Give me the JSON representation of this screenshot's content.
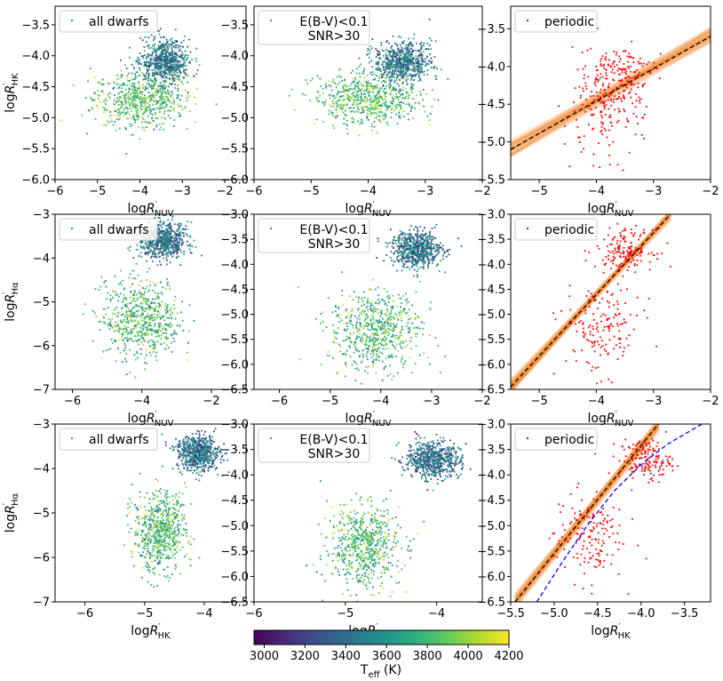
{
  "colorbar": {
    "label": "T_eff (K)",
    "label_main": "T",
    "label_sub": "eff",
    "label_unit": " (K)",
    "ticks": [
      "3000",
      "3200",
      "3400",
      "3600",
      "3800",
      "4000",
      "4200"
    ],
    "range": [
      2950,
      4200
    ],
    "colormap": "viridis"
  },
  "chart_data": [
    {
      "type": "scatter",
      "panel": "row1-col1",
      "legend": "all dwarfs",
      "legend_loc": "top-left",
      "xlabel": "logR'_NUV",
      "ylabel": "logR'_HK",
      "xlim": [
        -6,
        -1.5
      ],
      "ylim": [
        -6.0,
        -3.2
      ],
      "xticks": [
        -6,
        -5,
        -4,
        -3,
        -2
      ],
      "xtick_labels": [
        "−6",
        "−5",
        "−4",
        "−3",
        "−2"
      ],
      "yticks": [
        -6.0,
        -5.5,
        -5.0,
        -4.5,
        -4.0,
        -3.5
      ],
      "ytick_labels": [
        "−6.0",
        "−5.5",
        "−5.0",
        "−4.5",
        "−4.0",
        "−3.5"
      ],
      "color_by": "Teff",
      "clusters": [
        {
          "center": [
            -4.0,
            -4.7
          ],
          "spread": [
            0.55,
            0.22
          ],
          "teff_mean": 3820
        },
        {
          "center": [
            -3.4,
            -4.1
          ],
          "spread": [
            0.28,
            0.18
          ],
          "teff_mean": 3450
        }
      ]
    },
    {
      "type": "scatter",
      "panel": "row1-col2",
      "legend": "E(B-V)<0.1\nSNR>30",
      "legend_lines": [
        "E(B-V)<0.1",
        "SNR>30"
      ],
      "legend_loc": "top-left",
      "xlabel": "logR'_NUV",
      "xlim": [
        -6,
        -2
      ],
      "ylim": [
        -6.0,
        -3.2
      ],
      "xticks": [
        -6,
        -5,
        -4,
        -3,
        -2
      ],
      "xtick_labels": [
        "−6",
        "−5",
        "−4",
        "−3",
        "−2"
      ],
      "yticks": [
        -6.0,
        -5.5,
        -5.0,
        -4.5,
        -4.0,
        -3.5
      ],
      "ytick_labels": [
        "−6.0",
        "−5.5",
        "−5.0",
        "−4.5",
        "−4.0",
        "−3.5"
      ],
      "color_by": "Teff",
      "clusters": [
        {
          "center": [
            -4.0,
            -4.7
          ],
          "spread": [
            0.45,
            0.2
          ],
          "teff_mean": 3820
        },
        {
          "center": [
            -3.4,
            -4.1
          ],
          "spread": [
            0.25,
            0.16
          ],
          "teff_mean": 3450
        }
      ]
    },
    {
      "type": "scatter",
      "panel": "row1-col3",
      "legend": "periodic",
      "legend_loc": "top-left",
      "xlabel": "logR'_NUV",
      "xlim": [
        -5.5,
        -2
      ],
      "ylim": [
        -5.5,
        -3.2
      ],
      "xticks": [
        -5,
        -4,
        -3,
        -2
      ],
      "xtick_labels": [
        "−5",
        "−4",
        "−3",
        "−2"
      ],
      "yticks": [
        -5.5,
        -5.0,
        -4.5,
        -4.0,
        -3.5
      ],
      "ytick_labels": [
        "−5.5",
        "−5.0",
        "−4.5",
        "−4.0",
        "−3.5"
      ],
      "point_color": "#ff0000",
      "fit_line": {
        "x": [
          -5.5,
          -2.0
        ],
        "y": [
          -5.1,
          -3.6
        ],
        "color": "#000000",
        "band_color": "#f28b30"
      },
      "clusters": [
        {
          "center": [
            -3.6,
            -4.1
          ],
          "spread": [
            0.3,
            0.2
          ]
        },
        {
          "center": [
            -3.9,
            -4.6
          ],
          "spread": [
            0.35,
            0.3
          ]
        }
      ]
    },
    {
      "type": "scatter",
      "panel": "row2-col1",
      "legend": "all dwarfs",
      "legend_loc": "top-left",
      "xlabel": "logR'_NUV",
      "ylabel": "logR'_Hα",
      "xlim": [
        -6.5,
        -1.0
      ],
      "ylim": [
        -7,
        -3
      ],
      "xticks": [
        -6,
        -4,
        -2
      ],
      "xtick_labels": [
        "−6",
        "−4",
        "−2"
      ],
      "yticks": [
        -7,
        -6,
        -5,
        -4,
        -3
      ],
      "ytick_labels": [
        "−7",
        "−6",
        "−5",
        "−4",
        "−3"
      ],
      "color_by": "Teff",
      "clusters": [
        {
          "center": [
            -4.0,
            -5.4
          ],
          "spread": [
            0.55,
            0.45
          ],
          "teff_mean": 3800
        },
        {
          "center": [
            -3.4,
            -3.6
          ],
          "spread": [
            0.35,
            0.2
          ],
          "teff_mean": 3420
        }
      ]
    },
    {
      "type": "scatter",
      "panel": "row2-col2",
      "legend": "E(B-V)<0.1\nSNR>30",
      "legend_lines": [
        "E(B-V)<0.1",
        "SNR>30"
      ],
      "legend_loc": "top-left",
      "xlabel": "logR'_NUV",
      "xlim": [
        -6.5,
        -2
      ],
      "ylim": [
        -6.5,
        -3.0
      ],
      "xticks": [
        -6,
        -5,
        -4,
        -3,
        -2
      ],
      "xtick_labels": [
        "−6",
        "−5",
        "−4",
        "−3",
        "−2"
      ],
      "yticks": [
        -6.5,
        -6.0,
        -5.5,
        -5.0,
        -4.5,
        -4.0,
        -3.5,
        -3.0
      ],
      "ytick_labels": [
        "−6.5",
        "−6.0",
        "−5.5",
        "−5.0",
        "−4.5",
        "−4.0",
        "−3.5",
        "−3.0"
      ],
      "color_by": "Teff",
      "clusters": [
        {
          "center": [
            -4.1,
            -5.3
          ],
          "spread": [
            0.45,
            0.4
          ],
          "teff_mean": 3800
        },
        {
          "center": [
            -3.3,
            -3.7
          ],
          "spread": [
            0.25,
            0.18
          ],
          "teff_mean": 3420
        }
      ]
    },
    {
      "type": "scatter",
      "panel": "row2-col3",
      "legend": "periodic",
      "legend_loc": "top-left",
      "xlabel": "logR'_NUV",
      "xlim": [
        -5.5,
        -2
      ],
      "ylim": [
        -6.5,
        -3.0
      ],
      "xticks": [
        -5,
        -4,
        -3,
        -2
      ],
      "xtick_labels": [
        "−5",
        "−4",
        "−3",
        "−2"
      ],
      "yticks": [
        -6.5,
        -6.0,
        -5.5,
        -5.0,
        -4.5,
        -4.0,
        -3.5,
        -3.0
      ],
      "ytick_labels": [
        "−6.5",
        "−6.0",
        "−5.5",
        "−5.0",
        "−4.5",
        "−4.0",
        "−3.5",
        "−3.0"
      ],
      "point_color": "#ff0000",
      "fit_line": {
        "x": [
          -5.5,
          -2.7
        ],
        "y": [
          -6.45,
          -3.0
        ],
        "color": "#000000",
        "band_color": "#f28b30"
      },
      "clusters": [
        {
          "center": [
            -3.5,
            -3.7
          ],
          "spread": [
            0.25,
            0.2
          ]
        },
        {
          "center": [
            -3.9,
            -5.3
          ],
          "spread": [
            0.35,
            0.45
          ]
        }
      ]
    },
    {
      "type": "scatter",
      "panel": "row3-col1",
      "legend": "all dwarfs",
      "legend_loc": "top-left",
      "xlabel": "logR'_HK",
      "ylabel": "logR'_Hα",
      "xlim": [
        -6.5,
        -3.3
      ],
      "ylim": [
        -7,
        -3
      ],
      "xticks": [
        -6,
        -5,
        -4
      ],
      "xtick_labels": [
        "−6",
        "−5",
        "−4"
      ],
      "yticks": [
        -7,
        -6,
        -5,
        -4,
        -3
      ],
      "ytick_labels": [
        "−7",
        "−6",
        "−5",
        "−4",
        "−3"
      ],
      "color_by": "Teff",
      "clusters": [
        {
          "center": [
            -4.75,
            -5.4
          ],
          "spread": [
            0.22,
            0.45
          ],
          "teff_mean": 3800
        },
        {
          "center": [
            -4.1,
            -3.65
          ],
          "spread": [
            0.18,
            0.2
          ],
          "teff_mean": 3420
        }
      ]
    },
    {
      "type": "scatter",
      "panel": "row3-col2",
      "legend": "E(B-V)<0.1\nSNR>30",
      "legend_lines": [
        "E(B-V)<0.1",
        "SNR>30"
      ],
      "legend_loc": "top-left",
      "xlabel": "logR'_HK",
      "xlim": [
        -6,
        -3.5
      ],
      "ylim": [
        -6.5,
        -3.0
      ],
      "xticks": [
        -6,
        -5,
        -4
      ],
      "xtick_labels": [
        "−6",
        "−5",
        "−4"
      ],
      "yticks": [
        -6.5,
        -6.0,
        -5.5,
        -5.0,
        -4.5,
        -4.0,
        -3.5,
        -3.0
      ],
      "ytick_labels": [
        "−6.5",
        "−6.0",
        "−5.5",
        "−5.0",
        "−4.5",
        "−4.0",
        "−3.5",
        "−3.0"
      ],
      "color_by": "Teff",
      "clusters": [
        {
          "center": [
            -4.8,
            -5.4
          ],
          "spread": [
            0.2,
            0.4
          ],
          "teff_mean": 3800
        },
        {
          "center": [
            -4.05,
            -3.7
          ],
          "spread": [
            0.15,
            0.18
          ],
          "teff_mean": 3420
        }
      ]
    },
    {
      "type": "scatter",
      "panel": "row3-col3",
      "legend": "periodic",
      "legend_loc": "top-left",
      "xlabel": "logR'_HK",
      "xlim": [
        -5.5,
        -3.2
      ],
      "ylim": [
        -6.5,
        -3.0
      ],
      "xticks": [
        -5.5,
        -5.0,
        -4.5,
        -4.0,
        -3.5
      ],
      "xtick_labels": [
        "−5.5",
        "−5.0",
        "−4.5",
        "−4.0",
        "−3.5"
      ],
      "yticks": [
        -6.5,
        -6.0,
        -5.5,
        -5.0,
        -4.5,
        -4.0,
        -3.5,
        -3.0
      ],
      "ytick_labels": [
        "−6.5",
        "−6.0",
        "−5.5",
        "−5.0",
        "−4.5",
        "−4.0",
        "−3.5",
        "−3.0"
      ],
      "point_color": "#ff0000",
      "fit_line": {
        "x": [
          -5.45,
          -3.8
        ],
        "y": [
          -6.5,
          -3.0
        ],
        "color": "#000000",
        "band_color": "#f28b30"
      },
      "ref_curve": {
        "x": [
          -5.2,
          -4.9,
          -4.6,
          -4.3,
          -4.0,
          -3.7,
          -3.3
        ],
        "y": [
          -6.5,
          -5.7,
          -4.95,
          -4.3,
          -3.8,
          -3.4,
          -3.0
        ],
        "color": "#0000ff"
      },
      "clusters": [
        {
          "center": [
            -3.95,
            -3.7
          ],
          "spread": [
            0.15,
            0.2
          ]
        },
        {
          "center": [
            -4.6,
            -5.2
          ],
          "spread": [
            0.2,
            0.45
          ]
        }
      ]
    }
  ]
}
